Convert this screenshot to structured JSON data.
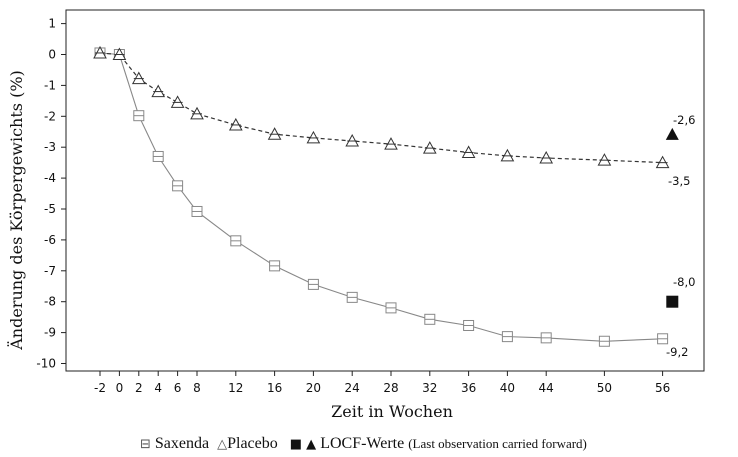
{
  "chart_data": {
    "type": "line",
    "ylabel": "Änderung des Körpergewichts (%)",
    "xlabel": "Zeit in Wochen",
    "x": [
      -2,
      0,
      2,
      4,
      6,
      8,
      12,
      16,
      20,
      24,
      28,
      32,
      36,
      40,
      44,
      50,
      56
    ],
    "xticks": [
      "-2",
      "0",
      "2",
      "4",
      "6",
      "8",
      "12",
      "16",
      "20",
      "24",
      "28",
      "32",
      "36",
      "40",
      "44",
      "50",
      "56"
    ],
    "ylim": [
      -10,
      1
    ],
    "yticks": [
      "1",
      "0",
      "-1",
      "-2",
      "-3",
      "-4",
      "-5",
      "-6",
      "-7",
      "-8",
      "-9",
      "-10"
    ],
    "grid": false,
    "series": [
      {
        "name": "Saxenda",
        "marker": "open-square",
        "line": "solid",
        "color": "#888888",
        "values": [
          0.05,
          0.0,
          -1.98,
          -3.3,
          -4.25,
          -5.08,
          -6.03,
          -6.84,
          -7.44,
          -7.86,
          -8.2,
          -8.57,
          -8.77,
          -9.13,
          -9.17,
          -9.28,
          -9.2
        ]
      },
      {
        "name": "Placebo",
        "marker": "open-triangle",
        "line": "dashed",
        "color": "#333333",
        "values": [
          0.05,
          0.0,
          -0.78,
          -1.2,
          -1.55,
          -1.92,
          -2.28,
          -2.58,
          -2.7,
          -2.8,
          -2.9,
          -3.03,
          -3.17,
          -3.28,
          -3.35,
          -3.42,
          -3.5
        ]
      }
    ],
    "locf": [
      {
        "series": "Saxenda",
        "marker": "filled-square",
        "x": 57,
        "y": -8.0
      },
      {
        "series": "Placebo",
        "marker": "filled-triangle",
        "x": 57,
        "y": -2.6
      }
    ],
    "annotations": [
      {
        "text": "-2,6"
      },
      {
        "text": "-3,5"
      },
      {
        "text": "-8,0"
      },
      {
        "text": "-9,2"
      }
    ]
  },
  "legend": {
    "saxenda_symbol": "⊟",
    "saxenda_label": "Saxenda",
    "placebo_symbol": "△",
    "placebo_label": "Placebo",
    "locf_symbols": "■ ▲",
    "locf_label": "LOCF-Werte",
    "locf_note": "(Last observation carried forward)"
  }
}
